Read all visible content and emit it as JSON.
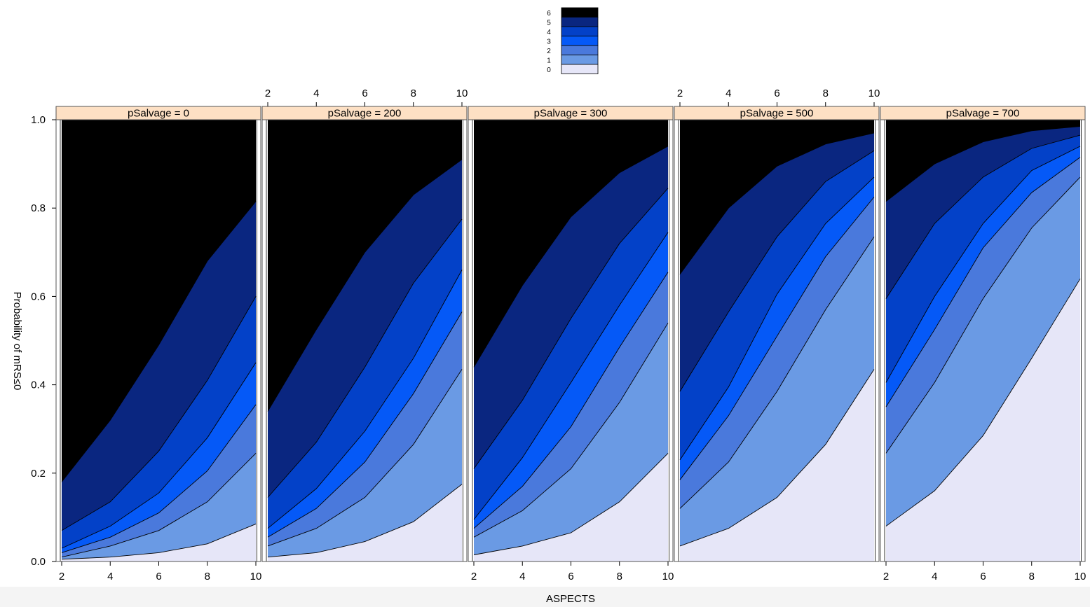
{
  "chart_data": {
    "type": "area",
    "xlabel": "ASPECTS",
    "ylabel": "Probability of mRS≤0",
    "x_ticks": [
      2,
      4,
      6,
      8,
      10
    ],
    "y_ticks": [
      0.0,
      0.2,
      0.4,
      0.6,
      0.8,
      1.0
    ],
    "y_tick_labels": [
      "0.0",
      "0.2",
      "0.4",
      "0.6",
      "0.8",
      "1.0"
    ],
    "xlim": [
      2,
      10
    ],
    "ylim": [
      0,
      1
    ],
    "legend": {
      "position": "top",
      "levels": [
        "6",
        "5",
        "4",
        "3",
        "2",
        "1",
        "0"
      ],
      "colors": {
        "6": "#000000",
        "5": "#0a2680",
        "4": "#0341c8",
        "3": "#0559f7",
        "2": "#4a79dc",
        "1": "#6a9ae4",
        "0": "#e6e6f8"
      }
    },
    "x": [
      2,
      4,
      6,
      8,
      10
    ],
    "panels": [
      {
        "title": "pSalvage = 0",
        "boundaries": [
          [
            0.005,
            0.01,
            0.02,
            0.04,
            0.085
          ],
          [
            0.01,
            0.035,
            0.07,
            0.135,
            0.245
          ],
          [
            0.02,
            0.055,
            0.11,
            0.205,
            0.355
          ],
          [
            0.03,
            0.08,
            0.155,
            0.28,
            0.45
          ],
          [
            0.07,
            0.135,
            0.25,
            0.41,
            0.6
          ],
          [
            0.18,
            0.32,
            0.49,
            0.68,
            0.815
          ]
        ]
      },
      {
        "title": "pSalvage = 200",
        "boundaries": [
          [
            0.01,
            0.02,
            0.045,
            0.09,
            0.175
          ],
          [
            0.035,
            0.075,
            0.145,
            0.265,
            0.435
          ],
          [
            0.055,
            0.12,
            0.225,
            0.38,
            0.565
          ],
          [
            0.075,
            0.165,
            0.295,
            0.46,
            0.66
          ],
          [
            0.145,
            0.27,
            0.44,
            0.63,
            0.775
          ],
          [
            0.34,
            0.525,
            0.7,
            0.83,
            0.91
          ]
        ]
      },
      {
        "title": "pSalvage = 300",
        "boundaries": [
          [
            0.015,
            0.035,
            0.065,
            0.135,
            0.245
          ],
          [
            0.055,
            0.115,
            0.21,
            0.36,
            0.54
          ],
          [
            0.075,
            0.17,
            0.305,
            0.485,
            0.655
          ],
          [
            0.095,
            0.235,
            0.405,
            0.58,
            0.745
          ],
          [
            0.21,
            0.365,
            0.55,
            0.72,
            0.845
          ],
          [
            0.44,
            0.625,
            0.78,
            0.88,
            0.94
          ]
        ]
      },
      {
        "title": "pSalvage = 500",
        "boundaries": [
          [
            0.035,
            0.075,
            0.145,
            0.265,
            0.435
          ],
          [
            0.12,
            0.225,
            0.385,
            0.57,
            0.735
          ],
          [
            0.185,
            0.33,
            0.51,
            0.69,
            0.825
          ],
          [
            0.23,
            0.395,
            0.605,
            0.765,
            0.87
          ],
          [
            0.385,
            0.565,
            0.735,
            0.86,
            0.93
          ],
          [
            0.65,
            0.8,
            0.895,
            0.945,
            0.97
          ]
        ]
      },
      {
        "title": "pSalvage = 700",
        "boundaries": [
          [
            0.08,
            0.16,
            0.285,
            0.46,
            0.64
          ],
          [
            0.245,
            0.405,
            0.595,
            0.755,
            0.87
          ],
          [
            0.35,
            0.525,
            0.71,
            0.835,
            0.915
          ],
          [
            0.405,
            0.6,
            0.765,
            0.885,
            0.94
          ],
          [
            0.595,
            0.765,
            0.87,
            0.935,
            0.965
          ],
          [
            0.815,
            0.9,
            0.95,
            0.975,
            0.985
          ]
        ]
      }
    ]
  }
}
